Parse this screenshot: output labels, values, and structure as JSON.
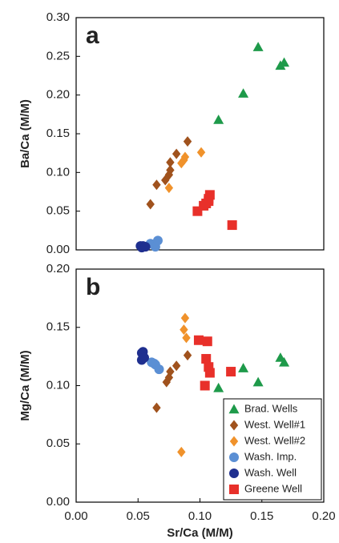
{
  "chart_data": [
    {
      "type": "scatter",
      "panel_label": "a",
      "y_label": "Ba/Ca (M/M)",
      "xlim": [
        0,
        0.2
      ],
      "ylim": [
        0,
        0.3
      ],
      "yticks": [
        {
          "value": 0,
          "label": "0.00"
        },
        0.05,
        {
          "value": 0.1,
          "label": "0.10"
        },
        0.15,
        {
          "value": 0.2,
          "label": "0.20"
        },
        0.25,
        {
          "value": 0.3,
          "label": "0.30"
        }
      ],
      "series": [
        {
          "color": "#1e9a4a",
          "marker": "triangle",
          "x": [
            0.147,
            0.165,
            0.168,
            0.135,
            0.115
          ],
          "y": [
            0.262,
            0.238,
            0.242,
            0.202,
            0.168
          ]
        },
        {
          "color": "#a0521d",
          "marker": "diamond",
          "x": [
            0.06,
            0.065,
            0.072,
            0.075,
            0.076,
            0.076,
            0.081,
            0.09
          ],
          "y": [
            0.059,
            0.084,
            0.09,
            0.097,
            0.103,
            0.113,
            0.124,
            0.14
          ]
        },
        {
          "color": "#f0922b",
          "marker": "diamond",
          "x": [
            0.075,
            0.085,
            0.087,
            0.088,
            0.101
          ],
          "y": [
            0.08,
            0.112,
            0.116,
            0.12,
            0.126
          ]
        },
        {
          "color": "#5b8fd4",
          "marker": "circle",
          "x": [
            0.06,
            0.064,
            0.066
          ],
          "y": [
            0.008,
            0.004,
            0.012
          ]
        },
        {
          "color": "#1f2f8f",
          "marker": "circle",
          "x": [
            0.052,
            0.053,
            0.054,
            0.056
          ],
          "y": [
            0.005,
            0.003,
            0.005,
            0.004
          ]
        },
        {
          "color": "#e8302a",
          "marker": "square",
          "x": [
            0.098,
            0.103,
            0.105,
            0.107,
            0.107,
            0.108,
            0.126
          ],
          "y": [
            0.05,
            0.057,
            0.06,
            0.063,
            0.066,
            0.071,
            0.032
          ]
        }
      ]
    },
    {
      "type": "scatter",
      "panel_label": "b",
      "y_label": "Mg/Ca (M/M)",
      "x_label": "Sr/Ca (M/M)",
      "xlim": [
        0,
        0.2
      ],
      "ylim": [
        0,
        0.2
      ],
      "xticks": [
        {
          "value": 0,
          "label": "0.00"
        },
        0.05,
        {
          "value": 0.1,
          "label": "0.10"
        },
        0.15,
        {
          "value": 0.2,
          "label": "0.20"
        }
      ],
      "yticks": [
        {
          "value": 0,
          "label": "0.00"
        },
        0.05,
        {
          "value": 0.1,
          "label": "0.10"
        },
        0.15,
        {
          "value": 0.2,
          "label": "0.20"
        }
      ],
      "legend": "lower right",
      "series": [
        {
          "name": "Brad. Wells",
          "color": "#1e9a4a",
          "marker": "triangle",
          "x": [
            0.115,
            0.135,
            0.147,
            0.165,
            0.168
          ],
          "y": [
            0.098,
            0.115,
            0.103,
            0.124,
            0.12
          ]
        },
        {
          "name": "West. Well#1",
          "color": "#a0521d",
          "marker": "diamond",
          "x": [
            0.065,
            0.073,
            0.075,
            0.076,
            0.081,
            0.09
          ],
          "y": [
            0.081,
            0.103,
            0.107,
            0.112,
            0.117,
            0.126
          ]
        },
        {
          "name": "West. Well#2",
          "color": "#f0922b",
          "marker": "diamond",
          "x": [
            0.085,
            0.087,
            0.088,
            0.089
          ],
          "y": [
            0.043,
            0.148,
            0.158,
            0.141
          ]
        },
        {
          "name": "Wash. Imp.",
          "color": "#5b8fd4",
          "marker": "circle",
          "x": [
            0.061,
            0.063,
            0.064,
            0.067
          ],
          "y": [
            0.12,
            0.119,
            0.118,
            0.114
          ]
        },
        {
          "name": "Wash. Well",
          "color": "#1f2f8f",
          "marker": "circle",
          "x": [
            0.053,
            0.053,
            0.054,
            0.055
          ],
          "y": [
            0.128,
            0.122,
            0.129,
            0.124
          ]
        },
        {
          "name": "Greene Well",
          "color": "#e8302a",
          "marker": "square",
          "x": [
            0.099,
            0.104,
            0.105,
            0.106,
            0.107,
            0.108,
            0.125
          ],
          "y": [
            0.139,
            0.1,
            0.123,
            0.138,
            0.116,
            0.111,
            0.112
          ]
        }
      ]
    }
  ]
}
